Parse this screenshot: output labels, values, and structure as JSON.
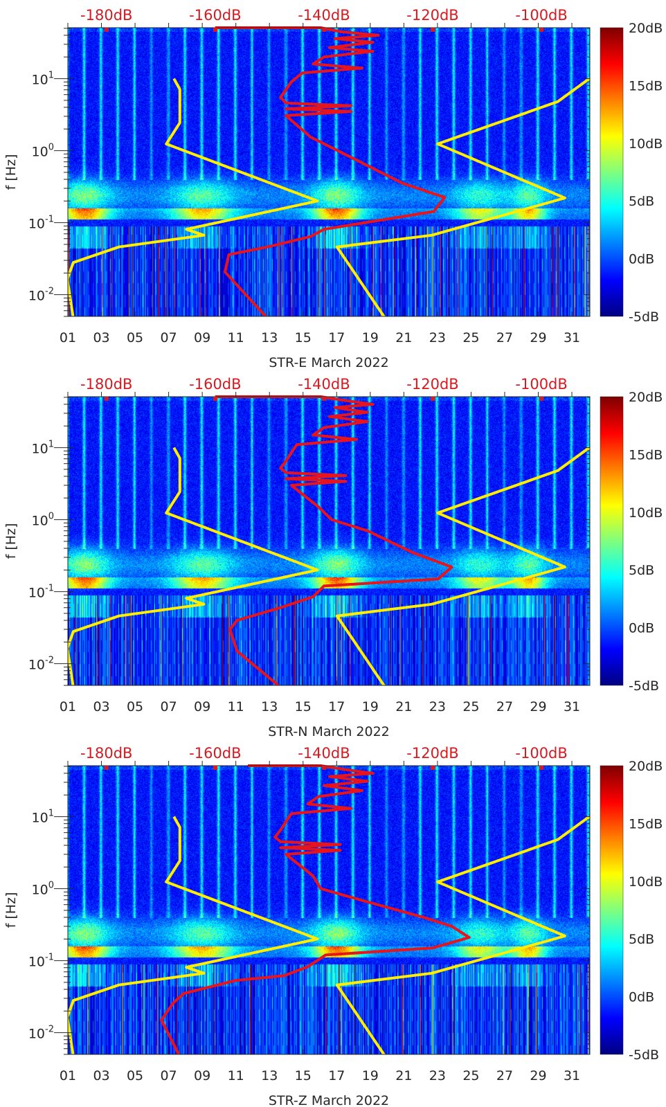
{
  "chart_data": [
    {
      "type": "heatmap",
      "xlabel": "STR-E March 2022",
      "ylabel": "f [Hz]",
      "x_ticks": [
        "01",
        "03",
        "05",
        "07",
        "09",
        "11",
        "13",
        "15",
        "17",
        "19",
        "21",
        "23",
        "25",
        "27",
        "29",
        "31"
      ],
      "xlim_days": [
        1,
        32.07
      ],
      "ylim_hz": [
        0.005,
        51
      ],
      "y_ticks": [
        {
          "base": "10",
          "exp": "1",
          "value": 10
        },
        {
          "base": "10",
          "exp": "0",
          "value": 1
        },
        {
          "base": "10",
          "exp": "-1",
          "value": 0.1
        },
        {
          "base": "10",
          "exp": "-2",
          "value": 0.01
        }
      ],
      "top_axis": {
        "ticks": [
          "-180dB",
          "-160dB",
          "-140dB",
          "-120dB",
          "-100dB"
        ],
        "values": [
          -180,
          -160,
          -140,
          -120,
          -100
        ],
        "range_db": [
          -187.1,
          -91.1
        ],
        "color": "#d71920"
      },
      "colorbar": {
        "ticks": [
          "20dB",
          "15dB",
          "10dB",
          "5dB",
          "0dB",
          "-5dB"
        ],
        "values": [
          20,
          15,
          10,
          5,
          0,
          -5
        ],
        "range_db": [
          -5,
          20
        ]
      },
      "low_noise_model": {
        "color": "#ffee00",
        "points_db_hz": [
          [
            -167.6,
            10
          ],
          [
            -166.5,
            7.1
          ],
          [
            -166.5,
            2.44
          ],
          [
            -169,
            1.24
          ],
          [
            -141.2,
            0.2
          ],
          [
            -165.3,
            0.081
          ],
          [
            -162.1,
            0.067
          ],
          [
            -177.7,
            0.046
          ],
          [
            -186.1,
            0.028
          ],
          [
            -187.2,
            0.0164
          ],
          [
            -186.1,
            0.0047
          ]
        ]
      },
      "high_noise_model": {
        "color": "#ffee00",
        "points_db_hz": [
          [
            -91.2,
            10
          ],
          [
            -97,
            4.8
          ],
          [
            -119.1,
            1.24
          ],
          [
            -95.7,
            0.22
          ],
          [
            -120.2,
            0.067
          ],
          [
            -137.6,
            0.046
          ],
          [
            -128.9,
            0.0049
          ]
        ]
      },
      "station_psd": {
        "color": "#e8141c",
        "points_db_hz": [
          [
            -160,
            51
          ],
          [
            -140.6,
            51
          ],
          [
            -137,
            45
          ],
          [
            -130,
            40
          ],
          [
            -138,
            36
          ],
          [
            -131,
            32
          ],
          [
            -139,
            27
          ],
          [
            -131,
            24
          ],
          [
            -140,
            20
          ],
          [
            -142,
            16
          ],
          [
            -133,
            14
          ],
          [
            -144,
            12
          ],
          [
            -146,
            9
          ],
          [
            -147,
            7
          ],
          [
            -148,
            5.5
          ],
          [
            -147,
            4.6
          ],
          [
            -135,
            4.2
          ],
          [
            -147,
            3.8
          ],
          [
            -135,
            3.5
          ],
          [
            -147,
            3.07
          ],
          [
            -142.5,
            1.55
          ],
          [
            -133.4,
            0.7
          ],
          [
            -125.6,
            0.354
          ],
          [
            -117.8,
            0.224
          ],
          [
            -119.8,
            0.143
          ],
          [
            -140,
            0.081
          ],
          [
            -142.5,
            0.064
          ],
          [
            -150.4,
            0.046
          ],
          [
            -157.5,
            0.036
          ],
          [
            -158.2,
            0.0207
          ],
          [
            -150.4,
            0.0047
          ]
        ]
      }
    },
    {
      "type": "heatmap",
      "xlabel": "STR-N March 2022",
      "ylabel": "f [Hz]",
      "x_ticks": [
        "01",
        "03",
        "05",
        "07",
        "09",
        "11",
        "13",
        "15",
        "17",
        "19",
        "21",
        "23",
        "25",
        "27",
        "29",
        "31"
      ],
      "xlim_days": [
        1,
        32.07
      ],
      "ylim_hz": [
        0.005,
        51
      ],
      "y_ticks": [
        {
          "base": "10",
          "exp": "1",
          "value": 10
        },
        {
          "base": "10",
          "exp": "0",
          "value": 1
        },
        {
          "base": "10",
          "exp": "-1",
          "value": 0.1
        },
        {
          "base": "10",
          "exp": "-2",
          "value": 0.01
        }
      ],
      "top_axis": {
        "ticks": [
          "-180dB",
          "-160dB",
          "-140dB",
          "-120dB",
          "-100dB"
        ],
        "values": [
          -180,
          -160,
          -140,
          -120,
          -100
        ],
        "range_db": [
          -187.1,
          -91.1
        ],
        "color": "#d71920"
      },
      "colorbar": {
        "ticks": [
          "20dB",
          "15dB",
          "10dB",
          "5dB",
          "0dB",
          "-5dB"
        ],
        "values": [
          20,
          15,
          10,
          5,
          0,
          -5
        ],
        "range_db": [
          -5,
          20
        ]
      },
      "low_noise_model": {
        "color": "#ffee00",
        "points_db_hz": [
          [
            -167.6,
            10
          ],
          [
            -166.5,
            7.1
          ],
          [
            -166.5,
            2.44
          ],
          [
            -169,
            1.24
          ],
          [
            -141.2,
            0.2
          ],
          [
            -165.3,
            0.081
          ],
          [
            -162.1,
            0.067
          ],
          [
            -177.7,
            0.046
          ],
          [
            -186.1,
            0.028
          ],
          [
            -187.2,
            0.0164
          ],
          [
            -186.1,
            0.0047
          ]
        ]
      },
      "high_noise_model": {
        "color": "#ffee00",
        "points_db_hz": [
          [
            -91.2,
            10
          ],
          [
            -97,
            4.8
          ],
          [
            -119.1,
            1.24
          ],
          [
            -95.7,
            0.22
          ],
          [
            -120.2,
            0.067
          ],
          [
            -137.6,
            0.046
          ],
          [
            -128.9,
            0.0049
          ]
        ]
      },
      "station_psd": {
        "color": "#e8141c",
        "points_db_hz": [
          [
            -160,
            51
          ],
          [
            -140.6,
            51
          ],
          [
            -136,
            45
          ],
          [
            -131,
            40
          ],
          [
            -138,
            36
          ],
          [
            -132,
            31
          ],
          [
            -139,
            27
          ],
          [
            -132,
            23
          ],
          [
            -140,
            19
          ],
          [
            -142,
            15
          ],
          [
            -134,
            13
          ],
          [
            -145,
            11
          ],
          [
            -146,
            8.5
          ],
          [
            -147,
            6.5
          ],
          [
            -148,
            5.2
          ],
          [
            -147,
            4.5
          ],
          [
            -136,
            4.1
          ],
          [
            -147,
            3.7
          ],
          [
            -136,
            3.4
          ],
          [
            -146,
            3.0
          ],
          [
            -141,
            1.5
          ],
          [
            -138.6,
            1.0
          ],
          [
            -132,
            0.7
          ],
          [
            -123.7,
            0.35
          ],
          [
            -118.5,
            0.25
          ],
          [
            -116.5,
            0.22
          ],
          [
            -119,
            0.15
          ],
          [
            -140,
            0.12
          ],
          [
            -142,
            0.085
          ],
          [
            -148,
            0.06
          ],
          [
            -156,
            0.04
          ],
          [
            -157.3,
            0.03
          ],
          [
            -156,
            0.015
          ],
          [
            -148.4,
            0.005
          ]
        ]
      }
    },
    {
      "type": "heatmap",
      "xlabel": "STR-Z March 2022",
      "ylabel": "f [Hz]",
      "x_ticks": [
        "01",
        "03",
        "05",
        "07",
        "09",
        "11",
        "13",
        "15",
        "17",
        "19",
        "21",
        "23",
        "25",
        "27",
        "29",
        "31"
      ],
      "xlim_days": [
        1,
        32.07
      ],
      "ylim_hz": [
        0.005,
        51
      ],
      "y_ticks": [
        {
          "base": "10",
          "exp": "1",
          "value": 10
        },
        {
          "base": "10",
          "exp": "0",
          "value": 1
        },
        {
          "base": "10",
          "exp": "-1",
          "value": 0.1
        },
        {
          "base": "10",
          "exp": "-2",
          "value": 0.01
        }
      ],
      "top_axis": {
        "ticks": [
          "-180dB",
          "-160dB",
          "-140dB",
          "-120dB",
          "-100dB"
        ],
        "values": [
          -180,
          -160,
          -140,
          -120,
          -100
        ],
        "range_db": [
          -187.1,
          -91.1
        ],
        "color": "#d71920"
      },
      "colorbar": {
        "ticks": [
          "20dB",
          "15dB",
          "10dB",
          "5dB",
          "0dB",
          "-5dB"
        ],
        "values": [
          20,
          15,
          10,
          5,
          0,
          -5
        ],
        "range_db": [
          -5,
          20
        ]
      },
      "low_noise_model": {
        "color": "#ffee00",
        "points_db_hz": [
          [
            -167.6,
            10
          ],
          [
            -166.5,
            7.1
          ],
          [
            -166.5,
            2.44
          ],
          [
            -169,
            1.24
          ],
          [
            -141.2,
            0.2
          ],
          [
            -165.3,
            0.081
          ],
          [
            -162.1,
            0.067
          ],
          [
            -177.7,
            0.046
          ],
          [
            -186.1,
            0.028
          ],
          [
            -187.2,
            0.0164
          ],
          [
            -186.1,
            0.0047
          ]
        ]
      },
      "high_noise_model": {
        "color": "#ffee00",
        "points_db_hz": [
          [
            -91.2,
            10
          ],
          [
            -97,
            4.8
          ],
          [
            -119.1,
            1.24
          ],
          [
            -95.7,
            0.22
          ],
          [
            -120.2,
            0.067
          ],
          [
            -137.6,
            0.046
          ],
          [
            -128.9,
            0.0049
          ]
        ]
      },
      "station_psd": {
        "color": "#e8141c",
        "points_db_hz": [
          [
            -154,
            51
          ],
          [
            -140.6,
            51
          ],
          [
            -136,
            45
          ],
          [
            -131,
            40
          ],
          [
            -139,
            36
          ],
          [
            -132,
            31
          ],
          [
            -140,
            27
          ],
          [
            -133,
            23
          ],
          [
            -141,
            19
          ],
          [
            -143,
            15
          ],
          [
            -135,
            13
          ],
          [
            -146,
            11
          ],
          [
            -147,
            8.5
          ],
          [
            -148,
            6.5
          ],
          [
            -149,
            5.2
          ],
          [
            -148,
            4.5
          ],
          [
            -137,
            4.1
          ],
          [
            -148,
            3.7
          ],
          [
            -137,
            3.4
          ],
          [
            -147,
            3.0
          ],
          [
            -142,
            1.5
          ],
          [
            -140.6,
            1.0
          ],
          [
            -133.4,
            0.7
          ],
          [
            -121.7,
            0.4
          ],
          [
            -116.5,
            0.3
          ],
          [
            -113.3,
            0.21
          ],
          [
            -120,
            0.15
          ],
          [
            -139.7,
            0.12
          ],
          [
            -142.9,
            0.083
          ],
          [
            -147.3,
            0.062
          ],
          [
            -156.3,
            0.053
          ],
          [
            -165.8,
            0.035
          ],
          [
            -167.7,
            0.026
          ],
          [
            -169.9,
            0.015
          ],
          [
            -166.7,
            0.005
          ]
        ]
      }
    }
  ]
}
